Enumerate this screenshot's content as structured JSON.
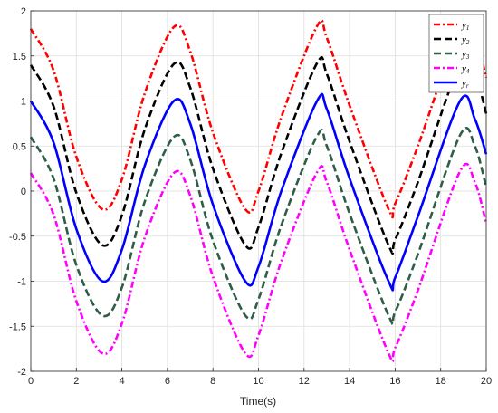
{
  "chart_data": {
    "type": "line",
    "xlabel": "Time(s)",
    "ylabel": "",
    "title": "",
    "xlim": [
      0,
      20
    ],
    "ylim": [
      -2,
      2
    ],
    "xticks": [
      0,
      2,
      4,
      6,
      8,
      10,
      12,
      14,
      16,
      18,
      20
    ],
    "yticks": [
      -2,
      -1.5,
      -1,
      -0.5,
      0,
      0.5,
      1,
      1.5,
      2
    ],
    "xtick_labels": [
      "0",
      "2",
      "4",
      "6",
      "8",
      "10",
      "12",
      "14",
      "16",
      "18",
      "20"
    ],
    "ytick_labels": [
      "-2",
      "-1.5",
      "-1",
      "-0.5",
      "0",
      "0.5",
      "1",
      "1.5",
      "2"
    ],
    "grid": true,
    "legend_position": "top-right",
    "series": [
      {
        "name": "y1",
        "label_main": "y",
        "label_sub": "1",
        "color": "#ff0000",
        "dash": "dashdot",
        "x": [
          0,
          1,
          2,
          3.14,
          4,
          5,
          6.28,
          7,
          8,
          9.42,
          10,
          11,
          12.57,
          13,
          14,
          15.71,
          16,
          17,
          18.85,
          19.5,
          20
        ],
        "y": [
          1.8,
          1.34,
          0.38,
          -0.2,
          0.13,
          1.08,
          1.82,
          1.55,
          0.65,
          -0.2,
          0.0,
          0.82,
          1.83,
          1.7,
          0.95,
          -0.2,
          -0.14,
          0.5,
          1.8,
          1.7,
          1.26
        ]
      },
      {
        "name": "y2",
        "label_main": "y",
        "label_sub": "2",
        "color": "#000000",
        "dash": "dashed",
        "x": [
          0,
          1,
          2,
          3.14,
          4,
          5,
          6.28,
          7,
          8,
          9.42,
          10,
          11,
          12.57,
          13,
          14,
          15.71,
          16,
          17,
          18.85,
          19.5,
          20
        ],
        "y": [
          1.4,
          0.94,
          -0.02,
          -0.6,
          -0.27,
          0.68,
          1.41,
          1.15,
          0.25,
          -0.6,
          -0.4,
          0.42,
          1.42,
          1.3,
          0.55,
          -0.6,
          -0.54,
          0.1,
          1.41,
          1.3,
          0.86
        ]
      },
      {
        "name": "y3",
        "label_main": "y",
        "label_sub": "3",
        "color": "#2e5e46",
        "dash": "dashed",
        "x": [
          0,
          1,
          2,
          3.14,
          4,
          5,
          6.28,
          7,
          8,
          9.42,
          10,
          11,
          12.57,
          13,
          14,
          15.71,
          16,
          17,
          18.85,
          19.5,
          20
        ],
        "y": [
          0.6,
          0.14,
          -0.82,
          -1.38,
          -1.07,
          -0.12,
          0.6,
          0.35,
          -0.55,
          -1.38,
          -1.2,
          -0.38,
          0.61,
          0.5,
          -0.25,
          -1.38,
          -1.34,
          -0.7,
          0.62,
          0.5,
          0.04
        ]
      },
      {
        "name": "y4",
        "label_main": "y",
        "label_sub": "4",
        "color": "#ff00ff",
        "dash": "dashdot",
        "x": [
          0,
          1,
          2,
          3.14,
          4,
          5,
          6.28,
          7,
          8,
          9.42,
          10,
          11,
          12.57,
          13,
          14,
          15.71,
          16,
          17,
          18.85,
          19.5,
          20
        ],
        "y": [
          0.2,
          -0.26,
          -1.22,
          -1.8,
          -1.47,
          -0.52,
          0.2,
          -0.05,
          -0.95,
          -1.8,
          -1.6,
          -0.78,
          0.21,
          0.1,
          -0.65,
          -1.8,
          -1.74,
          -1.1,
          0.22,
          0.1,
          -0.36
        ]
      },
      {
        "name": "yr",
        "label_main": "y",
        "label_sub": "r",
        "color": "#0000ff",
        "dash": "solid",
        "x": [
          0,
          1,
          2,
          3.14,
          4,
          5,
          6.28,
          7,
          8,
          9.42,
          10,
          11,
          12.57,
          13,
          14,
          15.71,
          16,
          17,
          18.85,
          19.5,
          20
        ],
        "y": [
          1.0,
          0.54,
          -0.42,
          -1.0,
          -0.65,
          0.28,
          1.0,
          0.75,
          -0.15,
          -1.0,
          -0.84,
          0.0,
          1.0,
          0.91,
          0.14,
          -1.0,
          -0.96,
          -0.28,
          1.0,
          0.8,
          0.41
        ]
      }
    ]
  }
}
